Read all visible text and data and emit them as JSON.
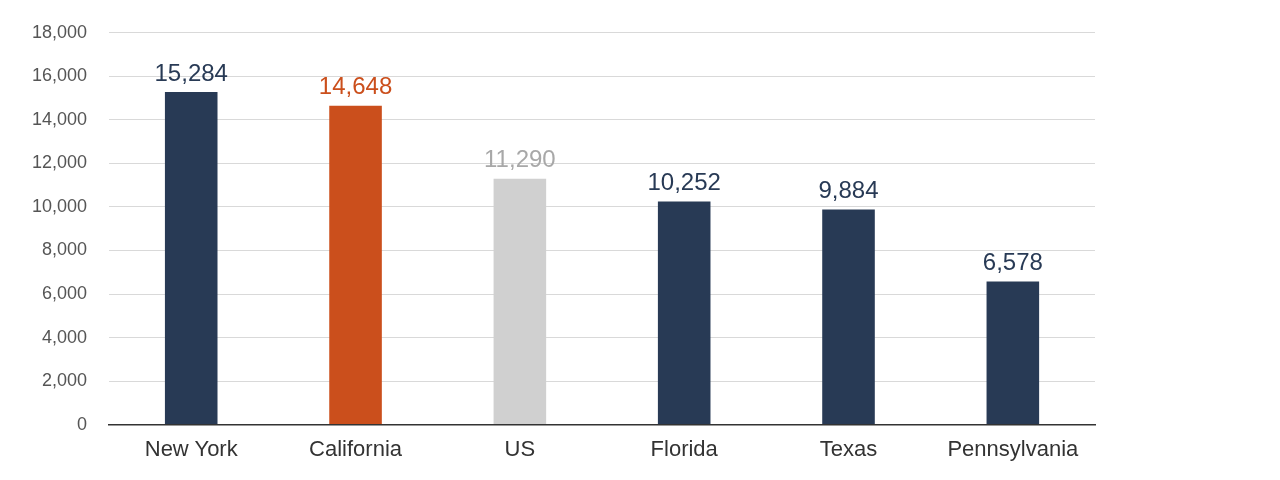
{
  "chart_data": {
    "type": "bar",
    "categories": [
      "New York",
      "California",
      "US",
      "Florida",
      "Texas",
      "Pennsylvania"
    ],
    "values": [
      15284,
      14648,
      11290,
      10252,
      9884,
      6578
    ],
    "value_labels": [
      "15,284",
      "14,648",
      "11,290",
      "10,252",
      "9,884",
      "6,578"
    ],
    "colors": [
      "#283a55",
      "#cb4f1c",
      "#d0d0d0",
      "#283a55",
      "#283a55",
      "#283a55"
    ],
    "ylim": [
      0,
      18000
    ],
    "yticks": [
      0,
      {
        "value": 2000,
        "label": "2,000"
      },
      {
        "value": 4000,
        "label": "4,000"
      },
      {
        "value": 6000,
        "label": "6,000"
      },
      {
        "value": 8000,
        "label": "8,000"
      },
      {
        "value": 10000,
        "label": "10,000"
      },
      {
        "value": 12000,
        "label": "12,000"
      },
      {
        "value": 14000,
        "label": "14,000"
      },
      {
        "value": 16000,
        "label": "16,000"
      },
      {
        "value": 18000,
        "label": "18,000"
      }
    ],
    "grid": "y",
    "legend": false
  }
}
